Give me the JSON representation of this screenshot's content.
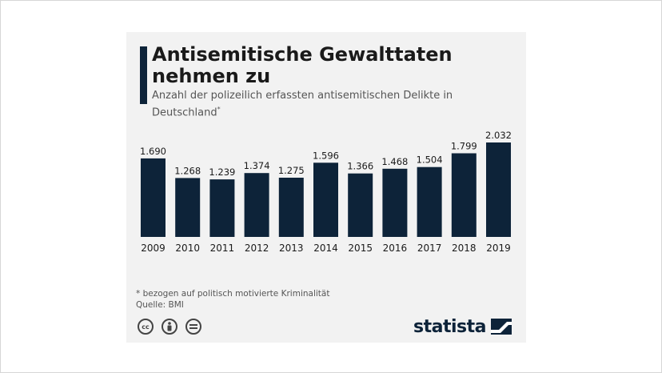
{
  "chart_data": {
    "type": "bar",
    "title": "Antisemitische Gewalttaten nehmen zu",
    "subtitle": "Anzahl der polizeilich erfassten antisemitischen Delikte in Deutschland",
    "subtitle_marker": "*",
    "categories": [
      "2009",
      "2010",
      "2011",
      "2012",
      "2013",
      "2014",
      "2015",
      "2016",
      "2017",
      "2018",
      "2019"
    ],
    "values": [
      1690,
      1268,
      1239,
      1374,
      1275,
      1596,
      1366,
      1468,
      1504,
      1799,
      2032
    ],
    "value_labels": [
      "1.690",
      "1.268",
      "1.239",
      "1.374",
      "1.275",
      "1.596",
      "1.366",
      "1.468",
      "1.504",
      "1.799",
      "2.032"
    ],
    "ylim": [
      0,
      2032
    ],
    "grid": false,
    "legend": "none",
    "bar_color": "#0d2339"
  },
  "footer": {
    "footnote": "* bezogen auf politisch motivierte Kriminalität",
    "source": "Quelle: BMI",
    "brand": "statista",
    "license_icons": [
      "cc-icon",
      "by-icon",
      "nd-icon"
    ]
  },
  "colors": {
    "card_bg": "#f2f2f2",
    "accent": "#0d2339",
    "text": "#1a1a1a"
  }
}
